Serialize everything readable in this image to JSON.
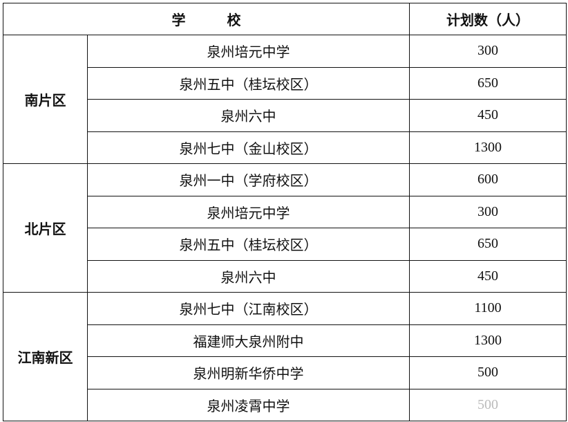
{
  "header": {
    "school": "学　　　校",
    "plan": "计划数（人）"
  },
  "regions": [
    {
      "name": "南片区",
      "rows": [
        {
          "school": "泉州培元中学",
          "count": "300"
        },
        {
          "school": "泉州五中（桂坛校区）",
          "count": "650"
        },
        {
          "school": "泉州六中",
          "count": "450"
        },
        {
          "school": "泉州七中（金山校区）",
          "count": "1300"
        }
      ]
    },
    {
      "name": "北片区",
      "rows": [
        {
          "school": "泉州一中（学府校区）",
          "count": "600"
        },
        {
          "school": "泉州培元中学",
          "count": "300"
        },
        {
          "school": "泉州五中（桂坛校区）",
          "count": "650"
        },
        {
          "school": "泉州六中",
          "count": "450"
        }
      ]
    },
    {
      "name": "江南新区",
      "rows": [
        {
          "school": "泉州七中（江南校区）",
          "count": "1100"
        },
        {
          "school": "福建师大泉州附中",
          "count": "1300"
        },
        {
          "school": "泉州明新华侨中学",
          "count": "500"
        },
        {
          "school": "泉州凌霄中学",
          "count": "500"
        }
      ]
    }
  ]
}
